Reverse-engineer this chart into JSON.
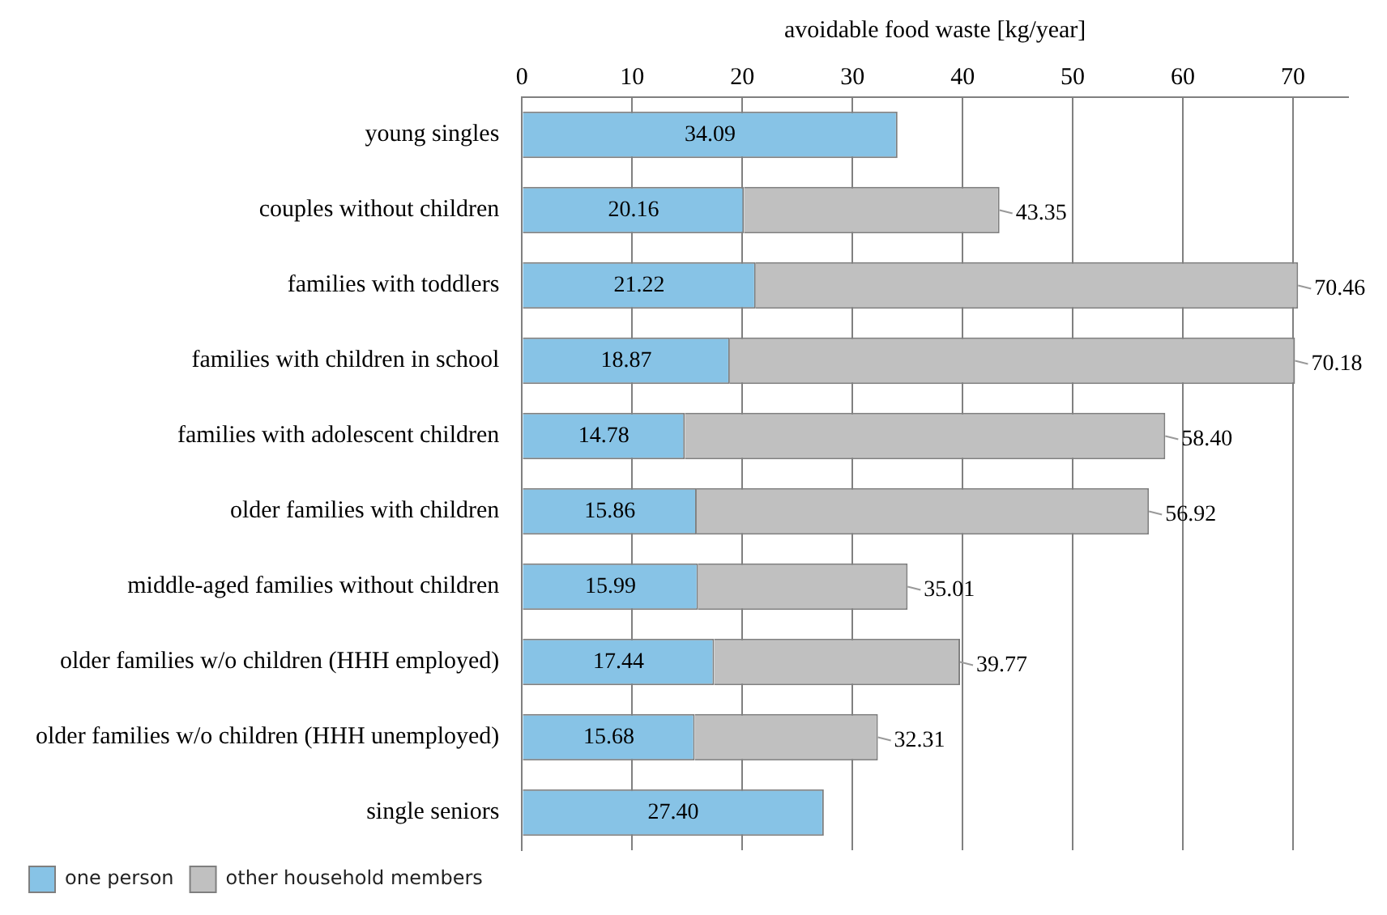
{
  "chart_data": {
    "type": "bar",
    "orientation": "horizontal",
    "stacked": true,
    "xlabel": "avoidable food waste [kg/year]",
    "categories": [
      "young singles",
      "couples without children",
      "families with toddlers",
      "families with children in school",
      "families with adolescent children",
      "older families with children",
      "middle-aged families without children",
      "older families w/o children (HHH employed)",
      "older families w/o children (HHH unemployed)",
      "single seniors"
    ],
    "series": [
      {
        "name": "one person",
        "color": "#87c3e6",
        "values": [
          34.09,
          20.16,
          21.22,
          18.87,
          14.78,
          15.86,
          15.99,
          17.44,
          15.68,
          27.4
        ],
        "value_labels": [
          "34.09",
          "20.16",
          "21.22",
          "18.87",
          "14.78",
          "15.86",
          "15.99",
          "17.44",
          "15.68",
          "27.40"
        ]
      },
      {
        "name": "other household members",
        "color": "#c0c0c0",
        "values": [
          null,
          23.19,
          49.24,
          51.31,
          43.62,
          41.06,
          19.02,
          22.33,
          16.63,
          null
        ]
      }
    ],
    "totals": [
      null,
      "43.35",
      "70.46",
      "70.18",
      "58.40",
      "56.92",
      "35.01",
      "39.77",
      "32.31",
      null
    ],
    "xlim": [
      0,
      75
    ],
    "xticks": [
      0,
      10,
      20,
      30,
      40,
      50,
      60,
      70
    ],
    "grid": "x",
    "legend": "bottom left"
  }
}
